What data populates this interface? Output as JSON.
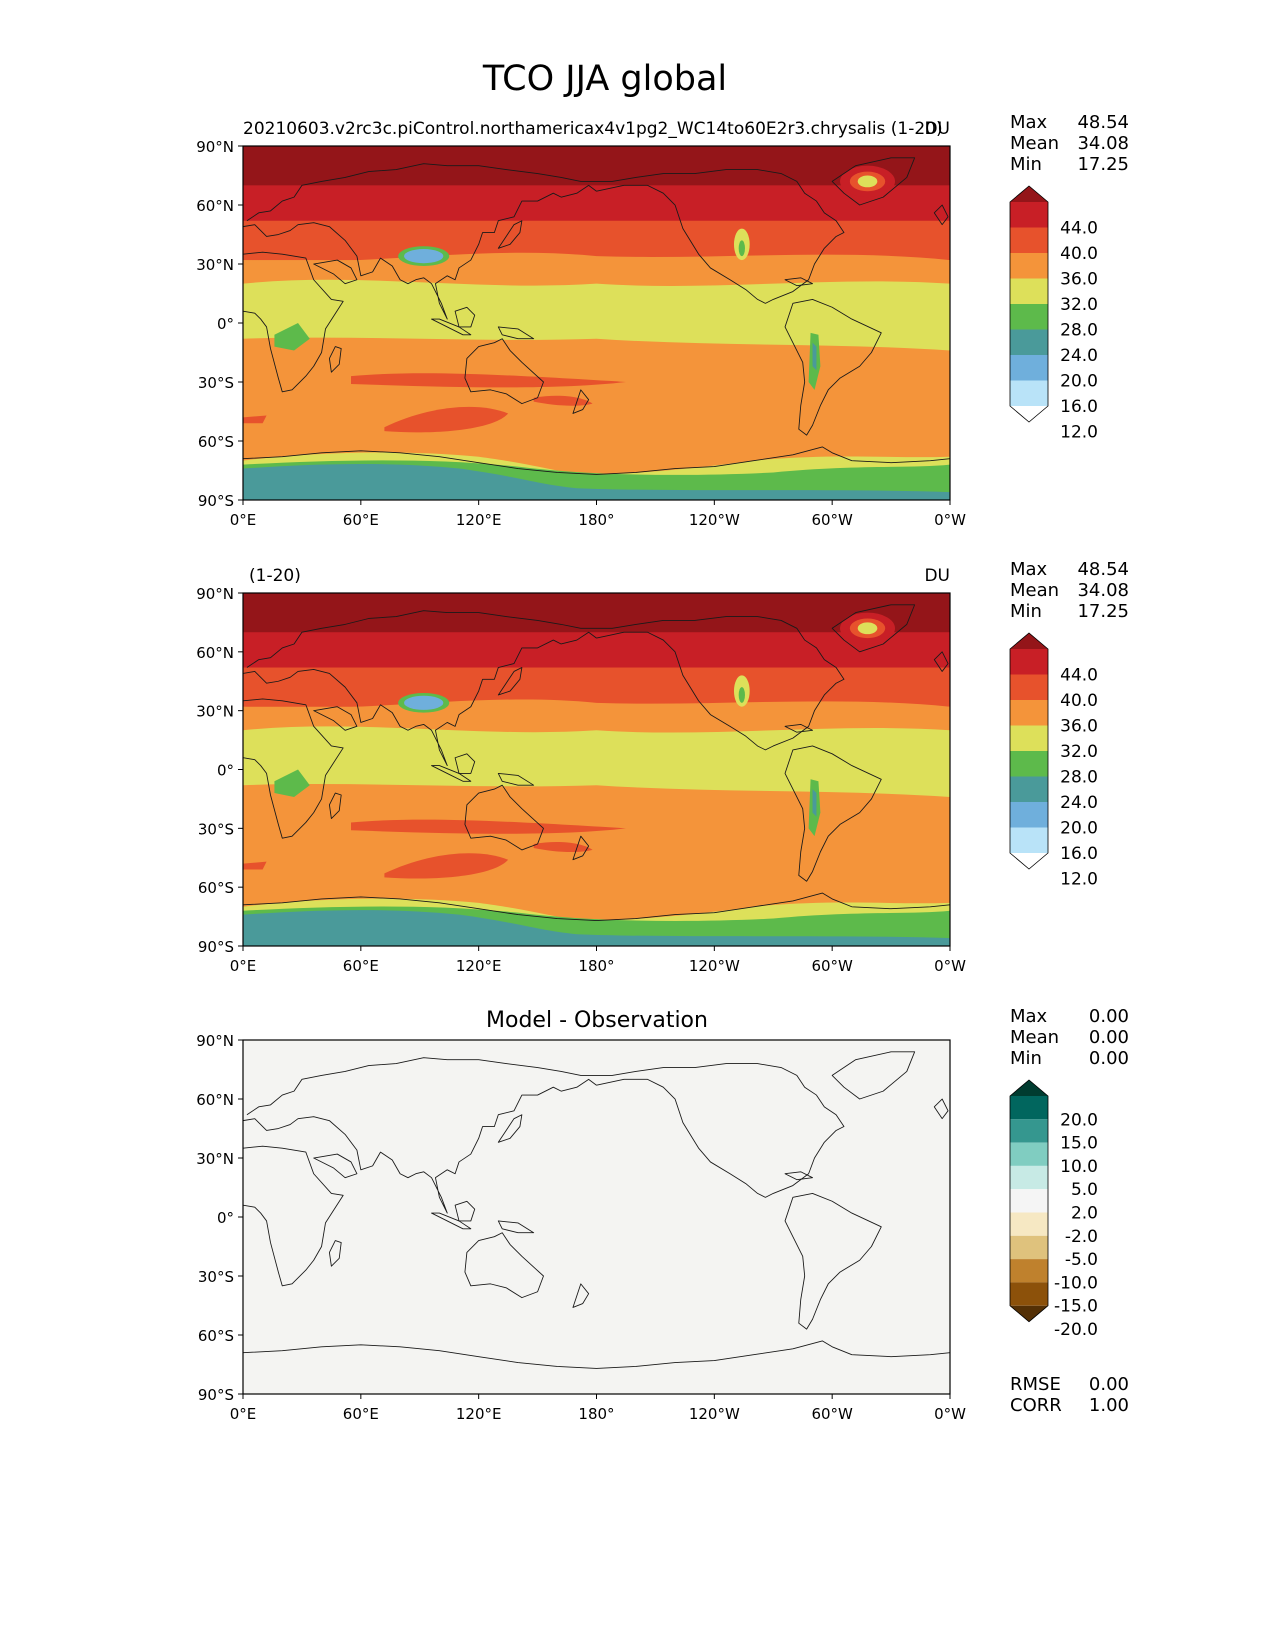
{
  "figure": {
    "title": "TCO JJA global"
  },
  "colors": {
    "seq": [
      "#ffffff",
      "#b9e3f8",
      "#6fafdc",
      "#4a9a9a",
      "#5dba4b",
      "#dde05a",
      "#f4943a",
      "#e7522c",
      "#c81f26",
      "#941519"
    ],
    "diff": [
      "#543005",
      "#8c510a",
      "#bf812d",
      "#dfc27d",
      "#f6e8c3",
      "#f5f5f5",
      "#c7eae5",
      "#80cdc1",
      "#35978f",
      "#01665e",
      "#003c30"
    ],
    "diff_field": "#f4f4f2"
  },
  "chart_data": [
    {
      "type": "heatmap",
      "panel": "test",
      "title_left": "20210603.v2rc3c.piControl.northamericax4v1pg2_WC14to60E2r3.chrysalis (1-20)",
      "title_right": "DU",
      "xlabel_ticks": [
        "0°E",
        "60°E",
        "120°E",
        "180°",
        "120°W",
        "60°W",
        "0°W"
      ],
      "ylabel_ticks": [
        "90°N",
        "60°N",
        "30°N",
        "0°",
        "30°S",
        "60°S",
        "90°S"
      ],
      "xlim": [
        0,
        360
      ],
      "ylim": [
        -90,
        90
      ],
      "stats": [
        {
          "label": "Max",
          "value": "48.54"
        },
        {
          "label": "Mean",
          "value": "34.08"
        },
        {
          "label": "Min",
          "value": "17.25"
        }
      ],
      "colorbar_levels": [
        "44.0",
        "40.0",
        "36.0",
        "32.0",
        "28.0",
        "24.0",
        "20.0",
        "16.0",
        "12.0"
      ]
    },
    {
      "type": "heatmap",
      "panel": "reference",
      "title_left": "(1-20)",
      "title_right": "DU",
      "xlabel_ticks": [
        "0°E",
        "60°E",
        "120°E",
        "180°",
        "120°W",
        "60°W",
        "0°W"
      ],
      "ylabel_ticks": [
        "90°N",
        "60°N",
        "30°N",
        "0°",
        "30°S",
        "60°S",
        "90°S"
      ],
      "xlim": [
        0,
        360
      ],
      "ylim": [
        -90,
        90
      ],
      "stats": [
        {
          "label": "Max",
          "value": "48.54"
        },
        {
          "label": "Mean",
          "value": "34.08"
        },
        {
          "label": "Min",
          "value": "17.25"
        }
      ],
      "colorbar_levels": [
        "44.0",
        "40.0",
        "36.0",
        "32.0",
        "28.0",
        "24.0",
        "20.0",
        "16.0",
        "12.0"
      ]
    },
    {
      "type": "heatmap",
      "panel": "difference",
      "title_center": "Model - Observation",
      "xlabel_ticks": [
        "0°E",
        "60°E",
        "120°E",
        "180°",
        "120°W",
        "60°W",
        "0°W"
      ],
      "ylabel_ticks": [
        "90°N",
        "60°N",
        "30°N",
        "0°",
        "30°S",
        "60°S",
        "90°S"
      ],
      "xlim": [
        0,
        360
      ],
      "ylim": [
        -90,
        90
      ],
      "stats": [
        {
          "label": "Max",
          "value": "0.00"
        },
        {
          "label": "Mean",
          "value": "0.00"
        },
        {
          "label": "Min",
          "value": "0.00"
        }
      ],
      "colorbar_levels": [
        "20.0",
        "15.0",
        "10.0",
        "5.0",
        "2.0",
        "-2.0",
        "-5.0",
        "-10.0",
        "-15.0",
        "-20.0"
      ],
      "metrics": [
        {
          "label": "RMSE",
          "value": "0.00"
        },
        {
          "label": "CORR",
          "value": "1.00"
        }
      ]
    }
  ]
}
